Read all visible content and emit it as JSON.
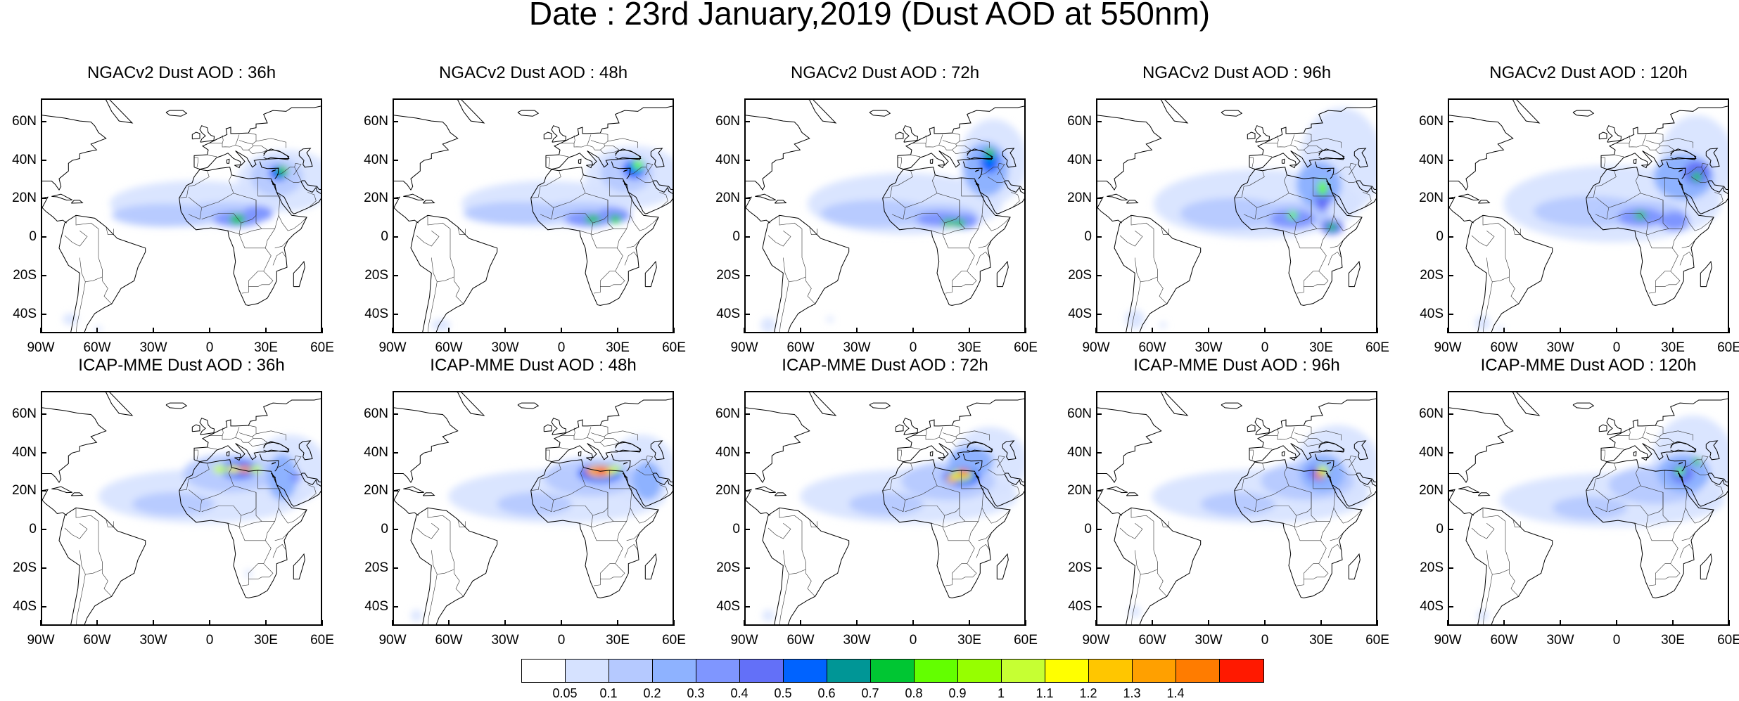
{
  "figure_title": "Date : 23rd January,2019 (Dust AOD at 550nm)",
  "panels": [
    {
      "title": "NGACv2 Dust AOD : 36h"
    },
    {
      "title": "NGACv2 Dust AOD : 48h"
    },
    {
      "title": "NGACv2 Dust AOD : 72h"
    },
    {
      "title": "NGACv2 Dust AOD : 96h"
    },
    {
      "title": "NGACv2 Dust AOD : 120h"
    },
    {
      "title": "ICAP-MME Dust AOD : 36h"
    },
    {
      "title": "ICAP-MME Dust AOD : 48h"
    },
    {
      "title": "ICAP-MME Dust AOD : 72h"
    },
    {
      "title": "ICAP-MME Dust AOD : 96h"
    },
    {
      "title": "ICAP-MME Dust AOD : 120h"
    }
  ],
  "lat_labels": [
    "60N",
    "40N",
    "20N",
    "0",
    "20S",
    "40S"
  ],
  "lon_labels": [
    "90W",
    "60W",
    "30W",
    "0",
    "30E",
    "60E"
  ],
  "colorbar": {
    "labels": [
      "0.05",
      "0.1",
      "0.2",
      "0.3",
      "0.4",
      "0.5",
      "0.6",
      "0.7",
      "0.8",
      "0.9",
      "1",
      "1.1",
      "1.2",
      "1.3",
      "1.4"
    ],
    "colors": [
      "#ffffff",
      "#d6e2ff",
      "#b5c9ff",
      "#8eb2ff",
      "#7f96ff",
      "#6370f8",
      "#0063ff",
      "#009696",
      "#00c633",
      "#63ff00",
      "#96ff00",
      "#c6ff33",
      "#ffff00",
      "#ffc600",
      "#ffa000",
      "#ff7c00",
      "#ff1900"
    ]
  }
}
